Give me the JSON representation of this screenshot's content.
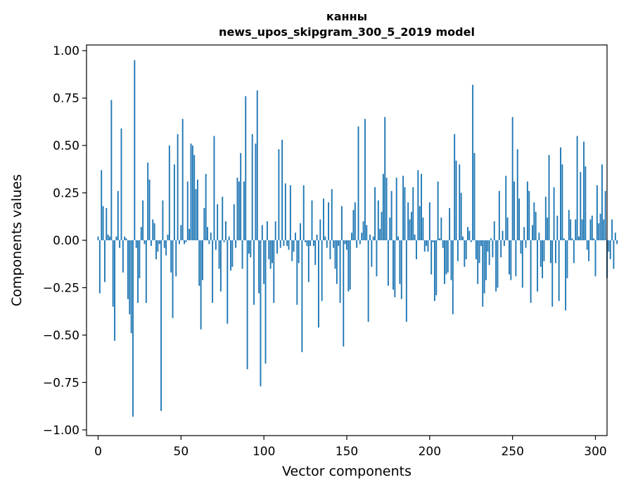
{
  "chart_data": {
    "type": "bar",
    "title": [
      "канны",
      "news_upos_skipgram_300_5_2019 model"
    ],
    "xlabel": "Vector components",
    "ylabel": "Components values",
    "xlim": [
      -7,
      307
    ],
    "ylim": [
      -1.03,
      1.03
    ],
    "xticks": [
      0,
      50,
      100,
      150,
      200,
      250,
      300
    ],
    "xtick_labels": [
      "0",
      "50",
      "100",
      "150",
      "200",
      "250",
      "300"
    ],
    "yticks": [
      1.0,
      0.75,
      0.5,
      0.25,
      0.0,
      -0.25,
      -0.5,
      -0.75,
      -1.0
    ],
    "ytick_labels": [
      "1.00",
      "0.75",
      "0.50",
      "0.25",
      "0.00",
      "−0.25",
      "−0.50",
      "−0.75",
      "−1.00"
    ],
    "grid": false,
    "bar_color": "#1f77b4",
    "values": [
      0.02,
      -0.28,
      0.37,
      0.18,
      -0.22,
      0.17,
      0.03,
      0.02,
      0.74,
      -0.35,
      -0.53,
      0.02,
      0.26,
      -0.04,
      0.59,
      -0.17,
      0.02,
      0.01,
      -0.31,
      -0.39,
      -0.49,
      -0.93,
      0.95,
      -0.04,
      -0.33,
      -0.2,
      0.07,
      0.21,
      -0.02,
      -0.33,
      0.41,
      0.32,
      -0.03,
      0.11,
      0.09,
      -0.1,
      -0.06,
      -0.02,
      -0.9,
      0.21,
      -0.04,
      -0.08,
      0.03,
      0.5,
      -0.17,
      -0.41,
      0.4,
      -0.19,
      0.56,
      -0.02,
      0.08,
      0.64,
      -0.02,
      -0.01,
      0.31,
      0.06,
      0.51,
      0.5,
      0.45,
      0.27,
      0.32,
      -0.24,
      -0.47,
      -0.21,
      0.17,
      0.35,
      0.07,
      -0.02,
      0.04,
      -0.33,
      0.55,
      -0.05,
      0.19,
      -0.15,
      -0.27,
      0.23,
      -0.01,
      0.1,
      -0.44,
      0.02,
      -0.16,
      -0.14,
      0.19,
      -0.04,
      0.33,
      0.31,
      0.46,
      -0.15,
      0.31,
      0.76,
      -0.68,
      -0.07,
      -0.09,
      0.56,
      -0.34,
      0.51,
      0.79,
      -0.28,
      -0.77,
      0.08,
      -0.23,
      -0.65,
      0.1,
      -0.1,
      -0.15,
      -0.12,
      -0.33,
      0.1,
      -0.07,
      0.48,
      -0.04,
      0.53,
      -0.03,
      0.3,
      -0.03,
      -0.05,
      0.29,
      -0.11,
      -0.06,
      0.04,
      -0.34,
      -0.12,
      0.09,
      -0.59,
      0.29,
      -0.01,
      -0.03,
      -0.22,
      -0.03,
      0.21,
      -0.03,
      -0.13,
      0.03,
      -0.46,
      0.11,
      -0.32,
      0.22,
      0.02,
      -0.04,
      0.2,
      -0.1,
      0.27,
      -0.04,
      -0.15,
      -0.23,
      -0.03,
      -0.33,
      0.18,
      -0.56,
      -0.02,
      -0.05,
      -0.27,
      -0.26,
      0.04,
      0.16,
      0.2,
      -0.04,
      0.6,
      -0.02,
      0.04,
      0.1,
      0.64,
      0.08,
      -0.43,
      0.03,
      -0.14,
      0.02,
      0.28,
      -0.19,
      0.21,
      0.06,
      0.15,
      0.35,
      0.65,
      0.33,
      -0.24,
      0.12,
      0.26,
      -0.26,
      -0.3,
      0.33,
      0.02,
      -0.23,
      -0.31,
      0.34,
      0.28,
      -0.43,
      0.2,
      0.11,
      0.15,
      0.28,
      0.03,
      -0.1,
      0.37,
      0.18,
      0.35,
      0.12,
      -0.06,
      -0.03,
      -0.06,
      0.2,
      -0.18,
      -0.01,
      -0.32,
      -0.29,
      0.31,
      0.01,
      0.12,
      -0.04,
      -0.23,
      -0.18,
      -0.17,
      0.17,
      -0.21,
      -0.39,
      0.56,
      0.42,
      -0.11,
      0.4,
      0.25,
      0.02,
      -0.14,
      -0.1,
      0.07,
      0.05,
      -0.01,
      0.82,
      0.46,
      -0.1,
      -0.23,
      -0.12,
      -0.03,
      -0.35,
      -0.28,
      -0.21,
      -0.06,
      -0.13,
      0.01,
      -0.09,
      0.1,
      -0.27,
      -0.25,
      0.26,
      -0.09,
      0.05,
      -0.03,
      0.34,
      0.12,
      -0.18,
      -0.21,
      0.65,
      0.31,
      -0.19,
      0.48,
      0.22,
      -0.07,
      -0.25,
      0.07,
      -0.04,
      0.31,
      0.26,
      -0.33,
      0.08,
      0.2,
      0.15,
      -0.27,
      0.04,
      -0.14,
      -0.2,
      -0.11,
      0.23,
      0.12,
      0.45,
      -0.12,
      -0.35,
      0.28,
      -0.12,
      0.13,
      -0.32,
      0.49,
      0.4,
      0.01,
      -0.37,
      -0.2,
      0.16,
      0.11,
      0.01,
      -0.12,
      0.11,
      0.55,
      0.02,
      0.36,
      0.11,
      0.52,
      0.39,
      -0.05,
      -0.11,
      0.11,
      0.13,
      0.01,
      -0.19,
      0.29,
      0.09,
      0.14,
      0.4,
      0.11,
      0.26,
      -0.2,
      -0.06,
      -0.1,
      0.11,
      -0.15,
      0.04,
      -0.02
    ]
  }
}
